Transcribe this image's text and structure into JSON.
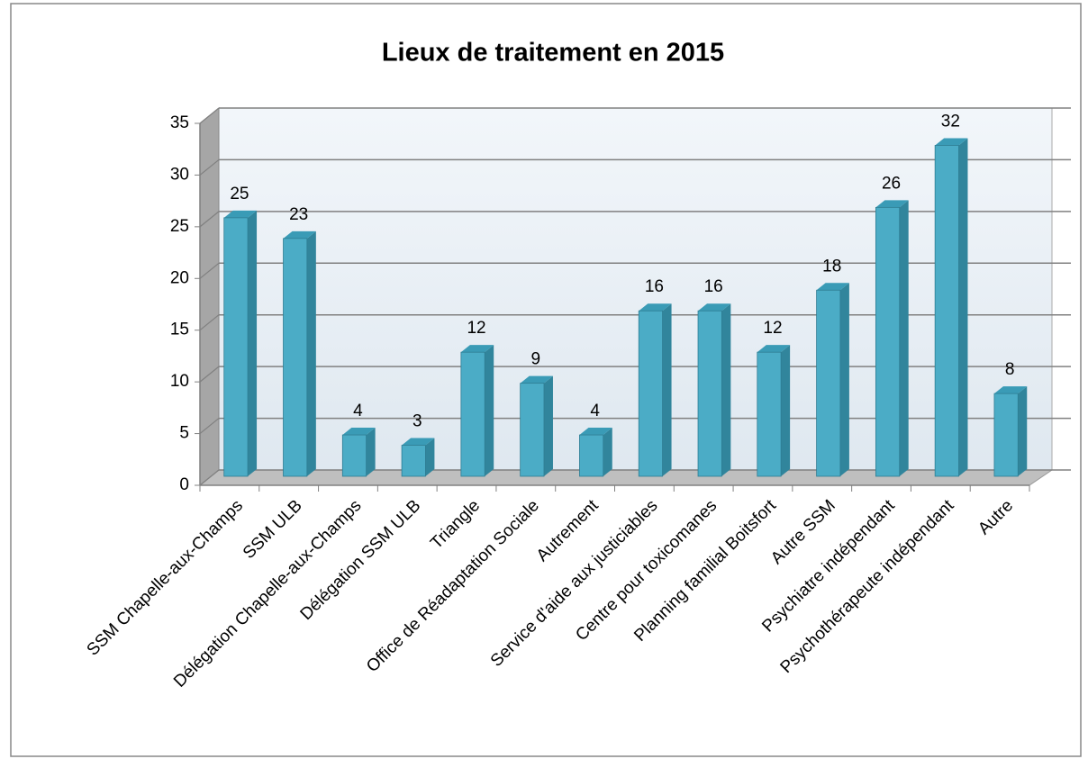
{
  "chart_data": {
    "type": "bar3d",
    "title": "Lieux de traitement en 2015",
    "categories": [
      "SSM Chapelle-aux-Champs",
      "SSM ULB",
      "Délégation Chapelle-aux-Champs",
      "Délégation SSM ULB",
      "Triangle",
      "Office de Réadaptation Sociale",
      "Autrement",
      "Service d'aide aux justiciables",
      "Centre pour toxicomanes",
      "Planning familial Boitsfort",
      "Autre SSM",
      "Psychiatre indépendant",
      "Psychothérapeute indépendant",
      "Autre"
    ],
    "values": [
      25,
      23,
      4,
      3,
      12,
      9,
      4,
      16,
      16,
      12,
      18,
      26,
      32,
      8
    ],
    "color": "#4bacc6",
    "ylim": [
      0,
      35
    ],
    "yticks": [
      0,
      5,
      10,
      15,
      20,
      25,
      30,
      35
    ],
    "grid": true
  }
}
